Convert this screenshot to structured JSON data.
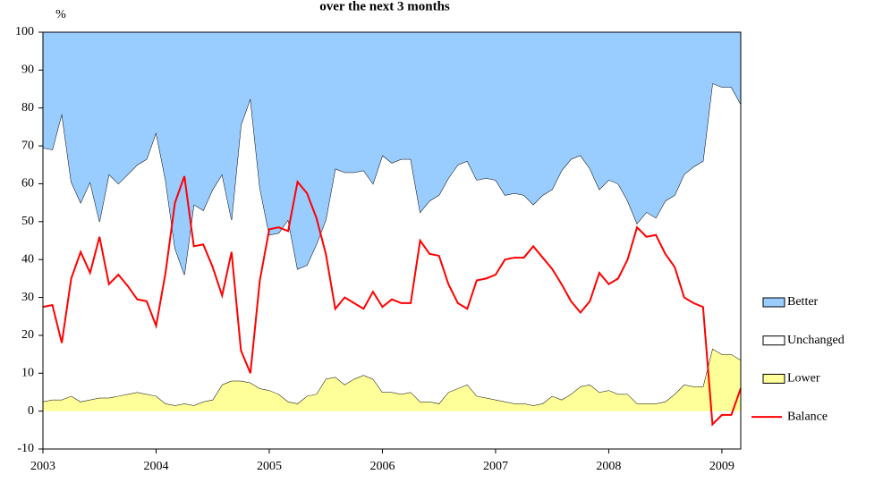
{
  "chart_data": {
    "type": "area",
    "title": "over the next 3 months",
    "y_label": "%",
    "categories": [
      "2003",
      null,
      null,
      null,
      null,
      null,
      null,
      null,
      null,
      null,
      null,
      null,
      "2004",
      null,
      null,
      null,
      null,
      null,
      null,
      null,
      null,
      null,
      null,
      null,
      "2005",
      null,
      null,
      null,
      null,
      null,
      null,
      null,
      null,
      null,
      null,
      null,
      "2006",
      null,
      null,
      null,
      null,
      null,
      null,
      null,
      null,
      null,
      null,
      null,
      "2007",
      null,
      null,
      null,
      null,
      null,
      null,
      null,
      null,
      null,
      null,
      null,
      "2008",
      null,
      null,
      null,
      null,
      null,
      null,
      null,
      null,
      null,
      null,
      null,
      "2009",
      null,
      null
    ],
    "ylim": [
      -10,
      100
    ],
    "yticks": [
      -10,
      0,
      10,
      20,
      30,
      40,
      50,
      60,
      70,
      80,
      90,
      100
    ],
    "grid": false,
    "legend": "right",
    "series": [
      {
        "name": "Better",
        "type": "area",
        "color": "#99ccff",
        "values": [
          30.5,
          31,
          21.5,
          39.5,
          45,
          39.5,
          50,
          37.5,
          40,
          37.5,
          35,
          33.5,
          26.5,
          39,
          57,
          64,
          45.5,
          47,
          41.5,
          37.5,
          49.5,
          24.5,
          17.5,
          41,
          53.5,
          53,
          49.5,
          62.5,
          61.5,
          56,
          49.5,
          36,
          37,
          37,
          36.5,
          40,
          32.5,
          34.5,
          33.5,
          33.5,
          47.5,
          44.5,
          43,
          38.5,
          35,
          34,
          39,
          38.5,
          39,
          43,
          42.5,
          43,
          45.5,
          43,
          41.5,
          36.5,
          33.5,
          32.5,
          36,
          41.5,
          39,
          40,
          44.5,
          50.5,
          47.5,
          49,
          44.5,
          43,
          37.5,
          35.5,
          34,
          13.5,
          14.5,
          14.5,
          19
        ]
      },
      {
        "name": "Unchanged",
        "type": "area",
        "color": "#ffffff",
        "values": [
          67,
          66,
          75.5,
          56.5,
          52.5,
          57.5,
          46.5,
          59,
          56,
          58,
          60,
          62,
          69.5,
          59,
          41.5,
          34,
          53,
          50.5,
          55.5,
          55.5,
          42.5,
          67.5,
          75,
          53,
          41,
          42.5,
          48,
          35.5,
          34.5,
          39.5,
          42,
          55,
          56,
          54.5,
          54,
          51.5,
          62.5,
          60.5,
          62,
          61.5,
          50,
          53,
          55,
          56.5,
          59,
          59,
          57,
          58,
          58,
          54.5,
          55.5,
          55,
          53,
          55,
          54.5,
          60.5,
          62,
          61,
          57,
          53.5,
          55.5,
          55.5,
          51,
          47.5,
          50.5,
          49,
          53,
          52.5,
          55.5,
          58,
          59.5,
          70,
          70.5,
          70.5,
          67.5
        ]
      },
      {
        "name": "Lower",
        "type": "area",
        "color": "#ffff99",
        "values": [
          2.5,
          3,
          3,
          4,
          2.5,
          3,
          3.5,
          3.5,
          4,
          4.5,
          5,
          4.5,
          4,
          2,
          1.5,
          2,
          1.5,
          2.5,
          3,
          7,
          8,
          8,
          7.5,
          6,
          5.5,
          4.5,
          2.5,
          2,
          4,
          4.5,
          8.5,
          9,
          7,
          8.5,
          9.5,
          8.5,
          5,
          5,
          4.5,
          5,
          2.5,
          2.5,
          2,
          5,
          6,
          7,
          4,
          3.5,
          3,
          2.5,
          2,
          2,
          1.5,
          2,
          4,
          3,
          4.5,
          6.5,
          7,
          5,
          5.5,
          4.5,
          4.5,
          2,
          2,
          2,
          2.5,
          4.5,
          7,
          6.5,
          6.5,
          16.5,
          15,
          15,
          13.5
        ]
      },
      {
        "name": "Balance",
        "type": "line",
        "color": "#ff0000",
        "values": [
          27.5,
          28,
          18,
          35,
          42,
          36.5,
          46,
          33.5,
          36,
          33,
          29.5,
          29,
          22.5,
          36.5,
          55,
          62,
          43.5,
          44,
          38,
          30.5,
          42,
          16,
          10,
          34.5,
          48,
          48.5,
          47.5,
          60.5,
          57.5,
          51,
          41.5,
          27,
          30,
          28.5,
          27,
          31.5,
          27.5,
          29.5,
          28.5,
          28.5,
          45,
          41.5,
          41,
          33.5,
          28.5,
          27,
          34.5,
          35,
          36,
          40,
          40.5,
          40.5,
          43.5,
          40.5,
          37.5,
          33.5,
          29,
          26,
          29,
          36.5,
          33.5,
          35,
          40,
          48.5,
          46,
          46.5,
          41.5,
          38,
          30,
          28.5,
          27.5,
          -3.5,
          -1,
          -1,
          6
        ]
      }
    ]
  }
}
